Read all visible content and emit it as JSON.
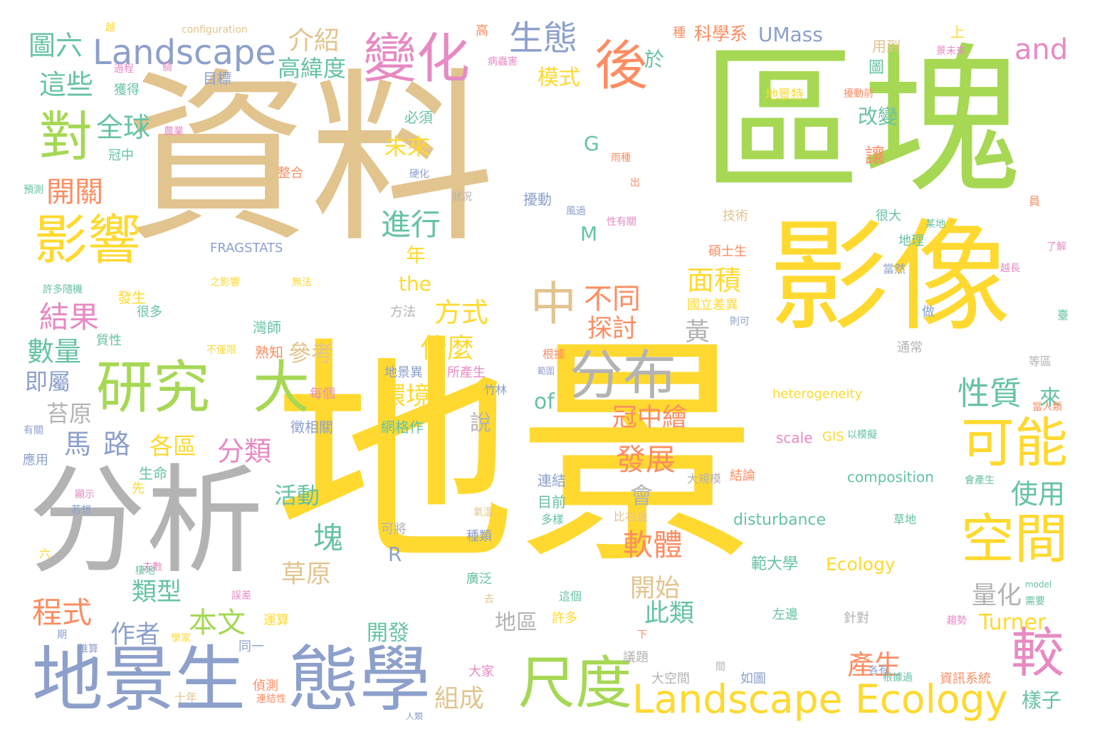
{
  "palette": {
    "tan": "#e2c48f",
    "green": "#a6d854",
    "yellow": "#ffd92f",
    "gray": "#b3b3b3",
    "blue": "#8da0cb",
    "orange": "#fc8d62",
    "pink": "#e78ac3",
    "teal": "#66c2a5"
  },
  "words": [
    {
      "text": "資料",
      "color": "tan"
    },
    {
      "text": "地景",
      "color": "yellow"
    },
    {
      "text": "區塊",
      "color": "green"
    },
    {
      "text": "影像",
      "color": "yellow"
    },
    {
      "text": "分析",
      "color": "gray"
    },
    {
      "text": "地景生",
      "color": "blue"
    },
    {
      "text": "態學",
      "color": "blue"
    },
    {
      "text": "研究",
      "color": "green"
    },
    {
      "text": "大",
      "color": "green"
    },
    {
      "text": "分布",
      "color": "gray"
    },
    {
      "text": "變化",
      "color": "pink"
    },
    {
      "text": "影響",
      "color": "yellow"
    },
    {
      "text": "尺度",
      "color": "green"
    },
    {
      "text": "Landscape Ecology",
      "color": "yellow"
    },
    {
      "text": "空間",
      "color": "yellow"
    },
    {
      "text": "可能",
      "color": "yellow"
    },
    {
      "text": "較",
      "color": "pink"
    },
    {
      "text": "後",
      "color": "orange"
    },
    {
      "text": "對",
      "color": "green"
    },
    {
      "text": "中",
      "color": "tan"
    },
    {
      "text": "Landscape",
      "color": "blue"
    },
    {
      "text": "生態",
      "color": "blue"
    },
    {
      "text": "and",
      "color": "pink"
    },
    {
      "text": "圖六",
      "color": "teal"
    },
    {
      "text": "介紹",
      "color": "tan"
    },
    {
      "text": "這些",
      "color": "teal"
    },
    {
      "text": "高緯度",
      "color": "teal"
    },
    {
      "text": "模式",
      "color": "yellow"
    },
    {
      "text": "於",
      "color": "teal"
    },
    {
      "text": "科學系",
      "color": "orange"
    },
    {
      "text": "UMass",
      "color": "blue"
    },
    {
      "text": "全球",
      "color": "teal"
    },
    {
      "text": "開關",
      "color": "orange"
    },
    {
      "text": "進行",
      "color": "teal"
    },
    {
      "text": "未來",
      "color": "yellow"
    },
    {
      "text": "結果",
      "color": "pink"
    },
    {
      "text": "數量",
      "color": "teal"
    },
    {
      "text": "即屬",
      "color": "blue"
    },
    {
      "text": "不同",
      "color": "orange"
    },
    {
      "text": "面積",
      "color": "yellow"
    },
    {
      "text": "方式",
      "color": "yellow"
    },
    {
      "text": "探討",
      "color": "orange"
    },
    {
      "text": "什麼",
      "color": "yellow"
    },
    {
      "text": "黃",
      "color": "gray"
    },
    {
      "text": "參考",
      "color": "tan"
    },
    {
      "text": "性質",
      "color": "teal"
    },
    {
      "text": "來",
      "color": "teal"
    },
    {
      "text": "環境",
      "color": "yellow"
    },
    {
      "text": "of",
      "color": "teal"
    },
    {
      "text": "苔原",
      "color": "gray"
    },
    {
      "text": "馬",
      "color": "blue"
    },
    {
      "text": "路",
      "color": "blue"
    },
    {
      "text": "各區",
      "color": "yellow"
    },
    {
      "text": "分類",
      "color": "pink"
    },
    {
      "text": "冠中繪",
      "color": "orange"
    },
    {
      "text": "發展",
      "color": "orange"
    },
    {
      "text": "使用",
      "color": "teal"
    },
    {
      "text": "活動",
      "color": "teal"
    },
    {
      "text": "會",
      "color": "gray"
    },
    {
      "text": "塊",
      "color": "teal"
    },
    {
      "text": "軟體",
      "color": "orange"
    },
    {
      "text": "程式",
      "color": "orange"
    },
    {
      "text": "類型",
      "color": "teal"
    },
    {
      "text": "本文",
      "color": "green"
    },
    {
      "text": "作者",
      "color": "blue"
    },
    {
      "text": "草原",
      "color": "tan"
    },
    {
      "text": "開始",
      "color": "tan"
    },
    {
      "text": "此類",
      "color": "teal"
    },
    {
      "text": "量化",
      "color": "gray"
    },
    {
      "text": "Turner",
      "color": "yellow"
    },
    {
      "text": "產生",
      "color": "orange"
    },
    {
      "text": "組成",
      "color": "tan"
    },
    {
      "text": "開發",
      "color": "teal"
    },
    {
      "text": "地區",
      "color": "gray"
    },
    {
      "text": "樣子",
      "color": "teal"
    },
    {
      "text": "Ecology",
      "color": "yellow"
    },
    {
      "text": "範大學",
      "color": "teal"
    },
    {
      "text": "disturbance",
      "color": "teal"
    },
    {
      "text": "composition",
      "color": "teal"
    },
    {
      "text": "heterogeneity",
      "color": "yellow"
    },
    {
      "text": "scale",
      "color": "pink"
    },
    {
      "text": "GIS",
      "color": "yellow"
    },
    {
      "text": "FRAGSTATS",
      "color": "blue"
    },
    {
      "text": "the",
      "color": "yellow"
    },
    {
      "text": "年",
      "color": "yellow"
    },
    {
      "text": "M",
      "color": "teal"
    },
    {
      "text": "G",
      "color": "teal"
    },
    {
      "text": "R",
      "color": "blue"
    },
    {
      "text": "說",
      "color": "gray"
    },
    {
      "text": "碩士生",
      "color": "orange"
    },
    {
      "text": "國立差異",
      "color": "yellow"
    },
    {
      "text": "技術",
      "color": "tan"
    },
    {
      "text": "擾動",
      "color": "blue"
    },
    {
      "text": "改變",
      "color": "teal"
    },
    {
      "text": "讓",
      "color": "orange"
    },
    {
      "text": "圖",
      "color": "teal"
    },
    {
      "text": "用到",
      "color": "tan"
    },
    {
      "text": "上",
      "color": "yellow"
    },
    {
      "text": "地景特",
      "color": "yellow"
    },
    {
      "text": "很大",
      "color": "teal"
    },
    {
      "text": "地理",
      "color": "teal"
    },
    {
      "text": "當然",
      "color": "blue"
    },
    {
      "text": "做",
      "color": "blue"
    },
    {
      "text": "臺",
      "color": "teal"
    },
    {
      "text": "通常",
      "color": "gray"
    },
    {
      "text": "等區",
      "color": "gray"
    },
    {
      "text": "當人類",
      "color": "orange"
    },
    {
      "text": "方法",
      "color": "gray"
    },
    {
      "text": "灣師",
      "color": "teal"
    },
    {
      "text": "熟知",
      "color": "orange"
    },
    {
      "text": "徵相關",
      "color": "blue"
    },
    {
      "text": "網格作",
      "color": "teal"
    },
    {
      "text": "地景異",
      "color": "blue"
    },
    {
      "text": "所產生",
      "color": "pink"
    },
    {
      "text": "竹林",
      "color": "blue"
    },
    {
      "text": "每個",
      "color": "pink"
    },
    {
      "text": "根據",
      "color": "orange"
    },
    {
      "text": "連結",
      "color": "blue"
    },
    {
      "text": "目前",
      "color": "teal"
    },
    {
      "text": "結論",
      "color": "orange"
    },
    {
      "text": "大規模",
      "color": "gray"
    },
    {
      "text": "比右邊",
      "color": "tan"
    },
    {
      "text": "種類",
      "color": "blue"
    },
    {
      "text": "多樣",
      "color": "teal"
    },
    {
      "text": "可將",
      "color": "gray"
    },
    {
      "text": "廣泛",
      "color": "teal"
    },
    {
      "text": "這個",
      "color": "teal"
    },
    {
      "text": "許多",
      "color": "yellow"
    },
    {
      "text": "左邊",
      "color": "teal"
    },
    {
      "text": "針對",
      "color": "gray"
    },
    {
      "text": "大空間",
      "color": "gray"
    },
    {
      "text": "如圖",
      "color": "blue"
    },
    {
      "text": "資訊系統",
      "color": "orange"
    },
    {
      "text": "議題",
      "color": "gray"
    },
    {
      "text": "大家",
      "color": "pink"
    },
    {
      "text": "生命",
      "color": "teal"
    },
    {
      "text": "先",
      "color": "yellow"
    },
    {
      "text": "應用",
      "color": "blue"
    },
    {
      "text": "很多",
      "color": "teal"
    },
    {
      "text": "質性",
      "color": "teal"
    },
    {
      "text": "發生",
      "color": "yellow"
    },
    {
      "text": "必須",
      "color": "teal"
    },
    {
      "text": "整合",
      "color": "orange"
    },
    {
      "text": "獲得",
      "color": "teal"
    },
    {
      "text": "過程",
      "color": "pink"
    },
    {
      "text": "目標",
      "color": "blue"
    },
    {
      "text": "冠中",
      "color": "teal"
    },
    {
      "text": "預測",
      "color": "teal"
    },
    {
      "text": "狀況",
      "color": "gray"
    },
    {
      "text": "出",
      "color": "orange"
    },
    {
      "text": "雨種",
      "color": "orange"
    },
    {
      "text": "員",
      "color": "orange"
    },
    {
      "text": "了解",
      "color": "pink"
    },
    {
      "text": "越長",
      "color": "pink"
    },
    {
      "text": "某地",
      "color": "teal"
    },
    {
      "text": "期",
      "color": "blue"
    },
    {
      "text": "推算",
      "color": "blue"
    },
    {
      "text": "同一",
      "color": "blue"
    },
    {
      "text": "運算",
      "color": "yellow"
    },
    {
      "text": "十年",
      "color": "tan"
    },
    {
      "text": "偵測",
      "color": "orange"
    },
    {
      "text": "連結性",
      "color": "orange"
    },
    {
      "text": "人類",
      "color": "blue"
    },
    {
      "text": "六",
      "color": "yellow"
    },
    {
      "text": "去數",
      "color": "pink"
    },
    {
      "text": "棲地",
      "color": "teal"
    },
    {
      "text": "若想",
      "color": "blue"
    },
    {
      "text": "顯示",
      "color": "pink"
    },
    {
      "text": "許多隨機",
      "color": "teal"
    },
    {
      "text": "之影響",
      "color": "yellow"
    },
    {
      "text": "無法",
      "color": "yellow"
    },
    {
      "text": "不僅限",
      "color": "yellow"
    },
    {
      "text": "有關",
      "color": "blue"
    },
    {
      "text": "configuration",
      "color": "tan"
    },
    {
      "text": "越",
      "color": "yellow"
    },
    {
      "text": "高",
      "color": "orange"
    },
    {
      "text": "種",
      "color": "orange"
    },
    {
      "text": "病蟲害",
      "color": "pink"
    },
    {
      "text": "擾動前",
      "color": "orange"
    },
    {
      "text": "景未來",
      "color": "pink"
    },
    {
      "text": "農業",
      "color": "pink"
    },
    {
      "text": "硬化",
      "color": "blue"
    },
    {
      "text": "風過",
      "color": "blue"
    },
    {
      "text": "性有關",
      "color": "pink"
    },
    {
      "text": "則可",
      "color": "blue"
    },
    {
      "text": "範圍",
      "color": "blue"
    },
    {
      "text": "以模擬",
      "color": "teal"
    },
    {
      "text": "會產生",
      "color": "teal"
    },
    {
      "text": "氣溫",
      "color": "tan"
    },
    {
      "text": "草地",
      "color": "teal"
    },
    {
      "text": "model",
      "color": "teal"
    },
    {
      "text": "需要",
      "color": "teal"
    },
    {
      "text": "趨勢",
      "color": "pink"
    },
    {
      "text": "學家",
      "color": "yellow"
    },
    {
      "text": "誤差",
      "color": "pink"
    },
    {
      "text": "去",
      "color": "tan"
    },
    {
      "text": "下",
      "color": "orange"
    },
    {
      "text": "間",
      "color": "gray"
    },
    {
      "text": "根據過",
      "color": "teal"
    },
    {
      "text": "各有",
      "color": "blue"
    },
    {
      "text": "騎",
      "color": "pink"
    }
  ]
}
